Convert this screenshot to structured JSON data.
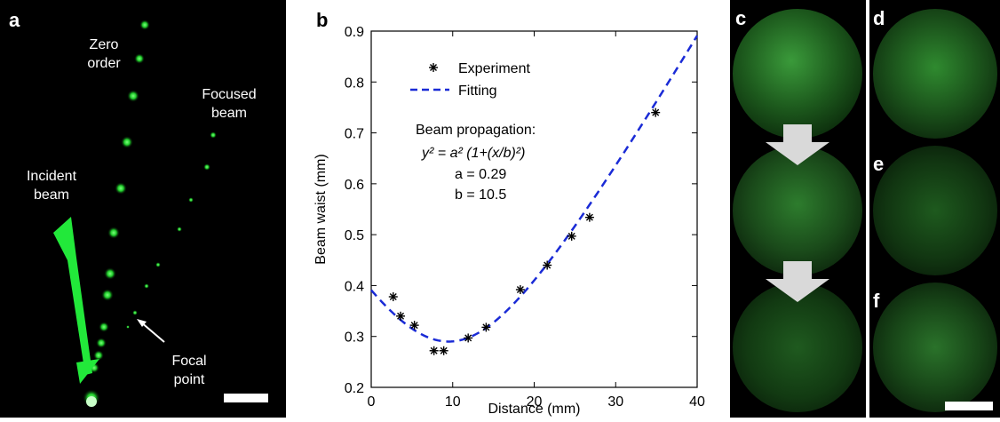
{
  "panel_labels": {
    "a": "a",
    "b": "b",
    "c": "c",
    "d": "d",
    "e": "e",
    "f": "f"
  },
  "panel_a": {
    "zero_order": [
      "Zero",
      "order"
    ],
    "focused_beam": [
      "Focused",
      "beam"
    ],
    "incident_beam": [
      "Incident",
      "beam"
    ],
    "focal_point": [
      "Focal",
      "point"
    ]
  },
  "colors": {
    "beam_green": "#22e83a",
    "fit_blue": "#1a2bd6",
    "marker": "#000000"
  },
  "chart_data": {
    "type": "scatter",
    "xlabel": "Distance (mm)",
    "ylabel": "Beam waist (mm)",
    "xlim": [
      0,
      40
    ],
    "ylim": [
      0.2,
      0.9
    ],
    "xticks": [
      "0",
      "10",
      "20",
      "30",
      "40"
    ],
    "yticks": [
      "0.2",
      "0.3",
      "0.4",
      "0.5",
      "0.6",
      "0.7",
      "0.8",
      "0.9"
    ],
    "legend": {
      "placement": "top-left",
      "experiment": "Experiment",
      "fitting": "Fitting"
    },
    "annotation": {
      "title": "Beam propagation:",
      "equation": "y² = a² (1+(x/b)²)",
      "a": "a = 0.29",
      "b": "b = 10.5"
    },
    "series": [
      {
        "name": "Experiment",
        "kind": "scatter",
        "x": [
          2.7,
          3.6,
          5.3,
          7.7,
          8.9,
          11.9,
          14.1,
          18.3,
          21.6,
          24.6,
          26.8,
          34.9
        ],
        "y": [
          0.378,
          0.34,
          0.322,
          0.272,
          0.272,
          0.297,
          0.318,
          0.392,
          0.44,
          0.497,
          0.534,
          0.74
        ]
      },
      {
        "name": "Fitting",
        "kind": "line",
        "model": {
          "a": 0.29,
          "b": 10.5,
          "x0": 9.5
        },
        "x_range": [
          0,
          40
        ]
      }
    ]
  }
}
